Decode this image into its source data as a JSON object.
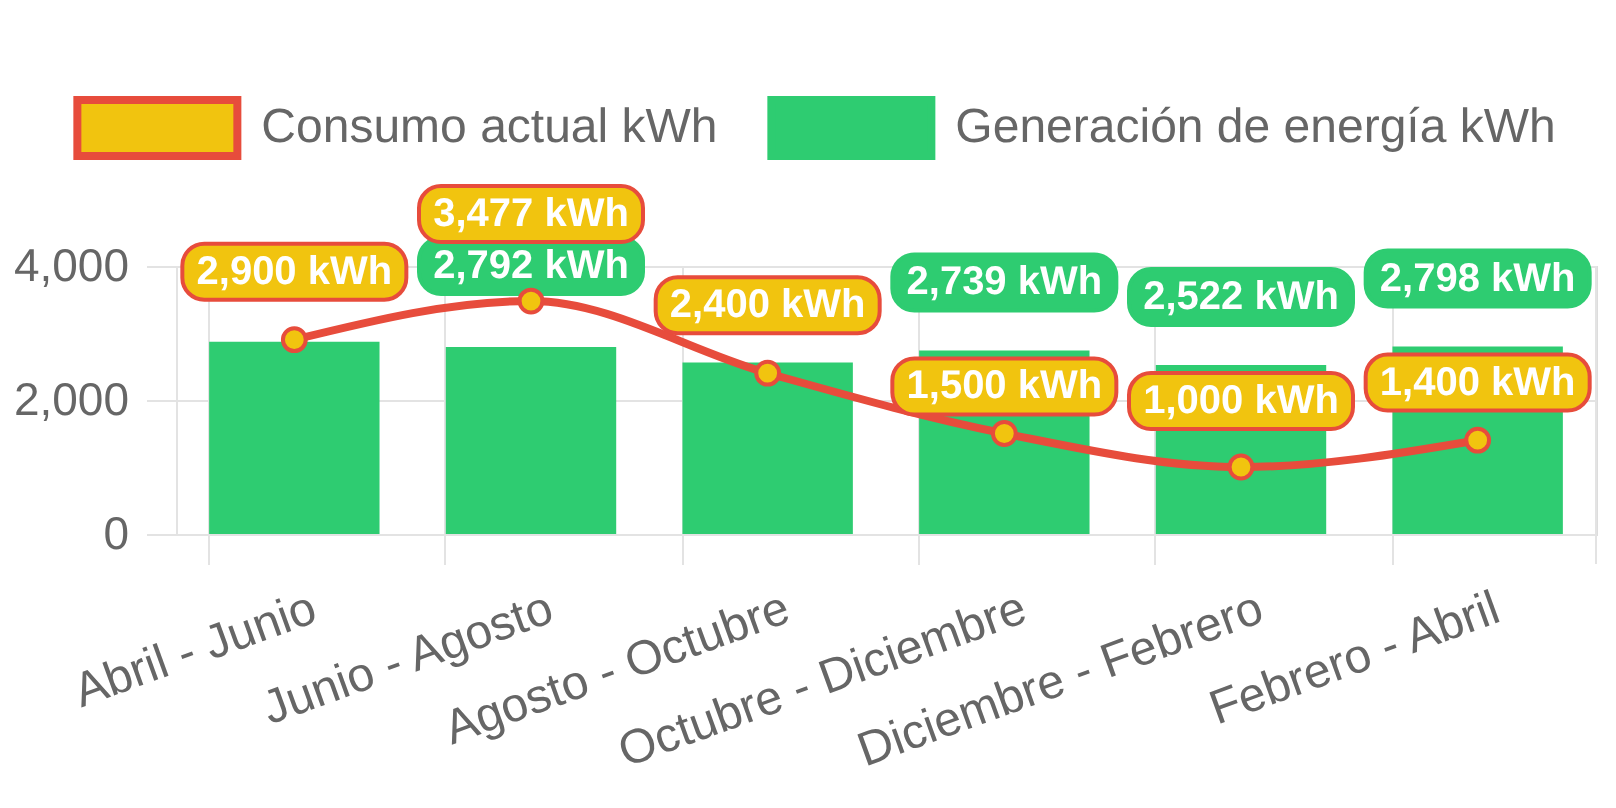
{
  "chart_data": {
    "type": "bar",
    "categories": [
      "Abril - Junio",
      "Junio - Agosto",
      "Agosto - Octubre",
      "Octubre - Diciembre",
      "Diciembre - Febrero",
      "Febrero - Abril"
    ],
    "series": [
      {
        "name": "Consumo actual kWh",
        "type": "line",
        "color": "#e74c3c",
        "colors": [
          "#f1c40f",
          "#f1c40f",
          "#f1c40f",
          "#f1c40f",
          "#f1c40f",
          "#f1c40f"
        ],
        "values": [
          2900,
          3477,
          2400,
          1500,
          1000,
          1400
        ],
        "value_labels": [
          "2,900 kWh",
          "3,477 kWh",
          "2,400 kWh",
          "1,500 kWh",
          "1,000 kWh",
          "1,400 kWh"
        ]
      },
      {
        "name": "Generación de energía kWh",
        "color": "#2ecc71",
        "values": [
          2870,
          2792,
          2560,
          2739,
          2522,
          2798
        ],
        "value_labels": [
          null,
          "2,792 kWh",
          null,
          "2,739 kWh",
          "2,522 kWh",
          "2,798 kWh"
        ]
      }
    ],
    "ylim": [
      0,
      4000
    ],
    "yticks": [
      0,
      {
        "value": 2000,
        "label": "2,000"
      },
      {
        "value": 4000,
        "label": "4,000"
      }
    ],
    "grid": true,
    "legend": "top",
    "marker": "circle"
  }
}
